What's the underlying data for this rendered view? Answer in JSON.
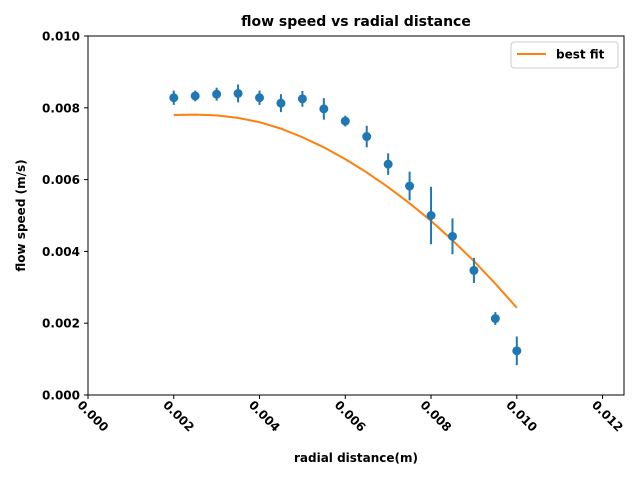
{
  "chart_data": {
    "type": "scatter",
    "title": "flow speed vs radial distance",
    "xlabel": "radial distance(m)",
    "ylabel": "flow speed (m/s)",
    "xlim": [
      0.0,
      0.0125
    ],
    "ylim": [
      0.0,
      0.01
    ],
    "xticks": [
      "0.000",
      "0.002",
      "0.004",
      "0.006",
      "0.008",
      "0.010",
      "0.012"
    ],
    "yticks": [
      "0.000",
      "0.002",
      "0.004",
      "0.006",
      "0.008",
      "0.010"
    ],
    "grid": false,
    "legend": {
      "position": "top-right",
      "entries": [
        "best fit"
      ]
    },
    "colors": {
      "data": "#1f77b4",
      "fit": "#ff7f0e"
    },
    "series": [
      {
        "kind": "errorbar",
        "x": [
          0.002,
          0.0025,
          0.003,
          0.0035,
          0.004,
          0.0045,
          0.005,
          0.0055,
          0.006,
          0.0065,
          0.007,
          0.0075,
          0.008,
          0.0085,
          0.009,
          0.0095,
          0.01
        ],
        "y": [
          0.00828,
          0.00833,
          0.00838,
          0.0084,
          0.00828,
          0.00813,
          0.00825,
          0.00797,
          0.00763,
          0.0072,
          0.00643,
          0.00582,
          0.005,
          0.00442,
          0.00347,
          0.00213,
          0.00123
        ],
        "yerr": [
          0.0002,
          0.00015,
          0.00018,
          0.00025,
          0.0002,
          0.00025,
          0.00022,
          0.0003,
          0.00015,
          0.0003,
          0.0003,
          0.0004,
          0.0008,
          0.0005,
          0.00035,
          0.00018,
          0.0004
        ]
      },
      {
        "kind": "line",
        "name": "best fit",
        "x": [
          0.002,
          0.0025,
          0.003,
          0.0035,
          0.004,
          0.0045,
          0.005,
          0.0055,
          0.006,
          0.0065,
          0.007,
          0.0075,
          0.008,
          0.0085,
          0.009,
          0.0095,
          0.01
        ],
        "y": [
          0.0078,
          0.00781,
          0.00779,
          0.00772,
          0.0076,
          0.00742,
          0.00718,
          0.0069,
          0.00657,
          0.0062,
          0.00579,
          0.00534,
          0.00485,
          0.00431,
          0.00373,
          0.0031,
          0.00243
        ]
      }
    ]
  }
}
